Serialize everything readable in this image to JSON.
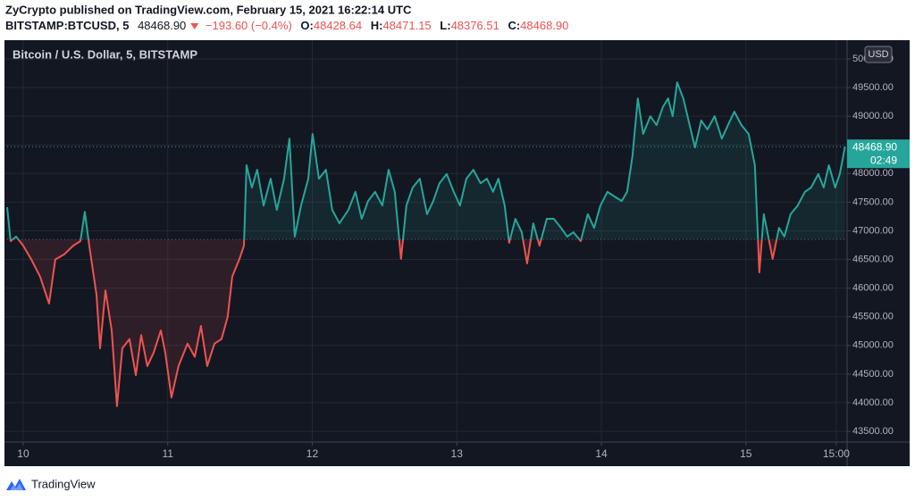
{
  "header": {
    "published": "ZyCrypto published on TradingView.com, February 15, 2021 16:22:14 UTC",
    "symbol": "BITSTAMP:BTCUSD, 5",
    "last": "48468.90",
    "change": "−193.60 (−0.4%)",
    "ohlc": [
      {
        "label": "O:",
        "value": "48428.64"
      },
      {
        "label": "H:",
        "value": "48471.15"
      },
      {
        "label": "L:",
        "value": "48376.51"
      },
      {
        "label": "C:",
        "value": "48468.90"
      }
    ]
  },
  "chart_data": {
    "type": "baseline",
    "title": "Bitcoin / U.S. Dollar, 5, BITSTAMP",
    "currency": "USD",
    "last_price_label": "48468.90",
    "countdown": "02:49",
    "color_up": "#26a69a",
    "color_down": "#ef5350",
    "baseline": 46850,
    "grid": true,
    "xlim": [
      9.889,
      15.7
    ],
    "ylim": [
      43313,
      50327
    ],
    "xticks": [
      10,
      11,
      12,
      13,
      14,
      15,
      {
        "value": 15.625,
        "label": "15:00"
      }
    ],
    "yticks": [
      {
        "value": 43500,
        "label": "43500.00"
      },
      {
        "value": 44000,
        "label": "44000.00"
      },
      {
        "value": 44500,
        "label": "44500.00"
      },
      {
        "value": 45000,
        "label": "45000.00"
      },
      {
        "value": 45500,
        "label": "45500.00"
      },
      {
        "value": 46000,
        "label": "46000.00"
      },
      {
        "value": 46500,
        "label": "46500.00"
      },
      {
        "value": 47000,
        "label": "47000.00"
      },
      {
        "value": 47500,
        "label": "47500.00"
      },
      {
        "value": 48000,
        "label": "48000.00"
      },
      {
        "value": 48500,
        "label": "48500.00"
      },
      {
        "value": 49000,
        "label": "49000.00"
      },
      {
        "value": 49500,
        "label": "49500.00"
      },
      {
        "value": 50000,
        "label": "50000.00"
      }
    ],
    "x": [
      9.889,
      9.913,
      9.951,
      10.0,
      10.056,
      10.117,
      10.179,
      10.222,
      10.284,
      10.346,
      10.396,
      10.426,
      10.457,
      10.507,
      10.532,
      10.569,
      10.612,
      10.649,
      10.686,
      10.735,
      10.779,
      10.816,
      10.859,
      10.902,
      10.952,
      10.983,
      11.026,
      11.075,
      11.137,
      11.187,
      11.23,
      11.273,
      11.323,
      11.372,
      11.415,
      11.446,
      11.496,
      11.527,
      11.545,
      11.582,
      11.619,
      11.663,
      11.712,
      11.755,
      11.805,
      11.842,
      11.879,
      11.922,
      11.972,
      12.002,
      12.046,
      12.095,
      12.138,
      12.188,
      12.25,
      12.299,
      12.342,
      12.386,
      12.435,
      12.485,
      12.528,
      12.571,
      12.614,
      12.651,
      12.695,
      12.744,
      12.794,
      12.837,
      12.88,
      12.93,
      12.979,
      13.022,
      13.066,
      13.115,
      13.164,
      13.208,
      13.251,
      13.288,
      13.331,
      13.362,
      13.405,
      13.449,
      13.486,
      13.529,
      13.572,
      13.622,
      13.671,
      13.721,
      13.764,
      13.807,
      13.857,
      13.906,
      13.95,
      13.993,
      14.042,
      14.091,
      14.141,
      14.178,
      14.215,
      14.252,
      14.289,
      14.339,
      14.382,
      14.425,
      14.462,
      14.493,
      14.524,
      14.567,
      14.611,
      14.648,
      14.691,
      14.734,
      14.784,
      14.833,
      14.876,
      14.92,
      14.969,
      15.019,
      15.062,
      15.093,
      15.124,
      15.155,
      15.185,
      15.229,
      15.266,
      15.309,
      15.358,
      15.408,
      15.451,
      15.501,
      15.538,
      15.574,
      15.618,
      15.649,
      15.686
    ],
    "values": [
      47412,
      46820,
      46900,
      46740,
      46500,
      46200,
      45730,
      46500,
      46590,
      46740,
      46820,
      47330,
      46740,
      45885,
      44950,
      45960,
      45260,
      43940,
      44950,
      45110,
      44480,
      45180,
      44640,
      44870,
      45260,
      44870,
      44090,
      44640,
      45030,
      44800,
      45340,
      44640,
      45030,
      45110,
      45500,
      46200,
      46510,
      46740,
      48145,
      47755,
      48065,
      47440,
      47910,
      47365,
      47910,
      48610,
      46900,
      47440,
      47910,
      48690,
      47910,
      48065,
      47365,
      47130,
      47365,
      47680,
      47210,
      47520,
      47680,
      47440,
      48065,
      47680,
      46510,
      47440,
      47755,
      47910,
      47290,
      47520,
      47830,
      47990,
      47680,
      47440,
      47910,
      48065,
      47830,
      47910,
      47680,
      47910,
      47440,
      46790,
      47210,
      46975,
      46430,
      47130,
      46740,
      47210,
      47210,
      47050,
      46900,
      46975,
      46820,
      47290,
      47050,
      47440,
      47680,
      47600,
      47520,
      47680,
      48300,
      49310,
      48690,
      49000,
      48845,
      49160,
      49310,
      49000,
      49590,
      49310,
      48845,
      48455,
      48925,
      48770,
      49000,
      48610,
      48845,
      49080,
      48845,
      48690,
      48145,
      46275,
      47290,
      46900,
      46510,
      47050,
      46900,
      47290,
      47440,
      47680,
      47755,
      47990,
      47755,
      48145,
      47755,
      47990,
      48468.9
    ]
  },
  "footer": {
    "brand": "TradingView"
  }
}
